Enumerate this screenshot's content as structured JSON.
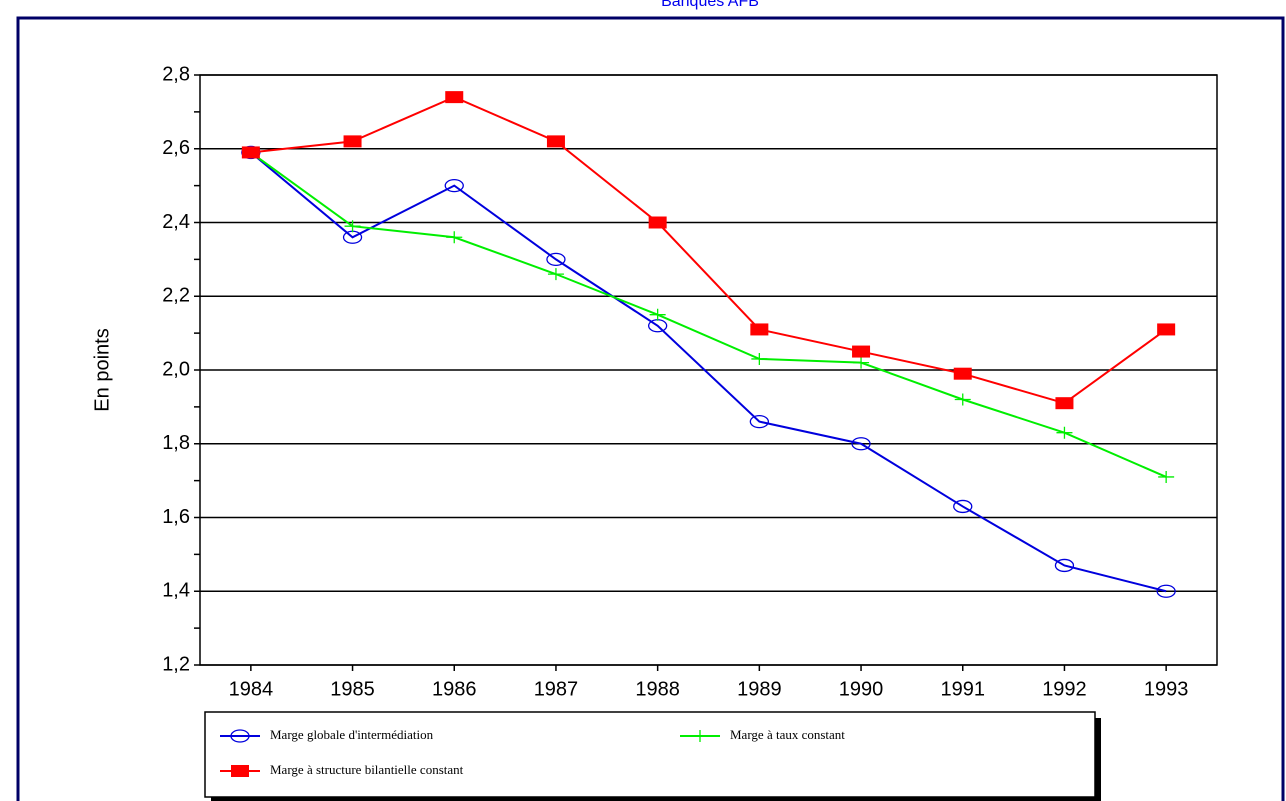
{
  "chart_data": {
    "type": "line",
    "title": "Banques AFB",
    "y_label": "En points",
    "categories": [
      "1984",
      "1985",
      "1986",
      "1987",
      "1988",
      "1989",
      "1990",
      "1991",
      "1992",
      "1993"
    ],
    "series": [
      {
        "name": "Marge globale d'intermédiation",
        "color": "#0000dd",
        "marker": "circle",
        "values": [
          2.59,
          2.36,
          2.5,
          2.3,
          2.12,
          1.86,
          1.8,
          1.63,
          1.47,
          1.4
        ]
      },
      {
        "name": "Marge à taux constant",
        "color": "#00ee00",
        "marker": "plus",
        "values": [
          2.59,
          2.39,
          2.36,
          2.26,
          2.15,
          2.03,
          2.02,
          1.92,
          1.83,
          1.71
        ]
      },
      {
        "name": "Marge à structure bilantielle constant",
        "color": "#ff0000",
        "marker": "square",
        "values": [
          2.59,
          2.62,
          2.74,
          2.62,
          2.4,
          2.11,
          2.05,
          1.99,
          1.91,
          2.11
        ]
      }
    ],
    "ylim": [
      1.2,
      2.8
    ],
    "yticks": [
      {
        "value": 1.2,
        "label": "1,2"
      },
      {
        "value": 1.4,
        "label": "1,4"
      },
      {
        "value": 1.6,
        "label": "1,6"
      },
      {
        "value": 1.8,
        "label": "1,8"
      },
      {
        "value": 2.0,
        "label": "2,0"
      },
      {
        "value": 2.2,
        "label": "2,2"
      },
      {
        "value": 2.4,
        "label": "2,4"
      },
      {
        "value": 2.6,
        "label": "2,6"
      },
      {
        "value": 2.8,
        "label": "2,8"
      }
    ],
    "grid": true
  }
}
